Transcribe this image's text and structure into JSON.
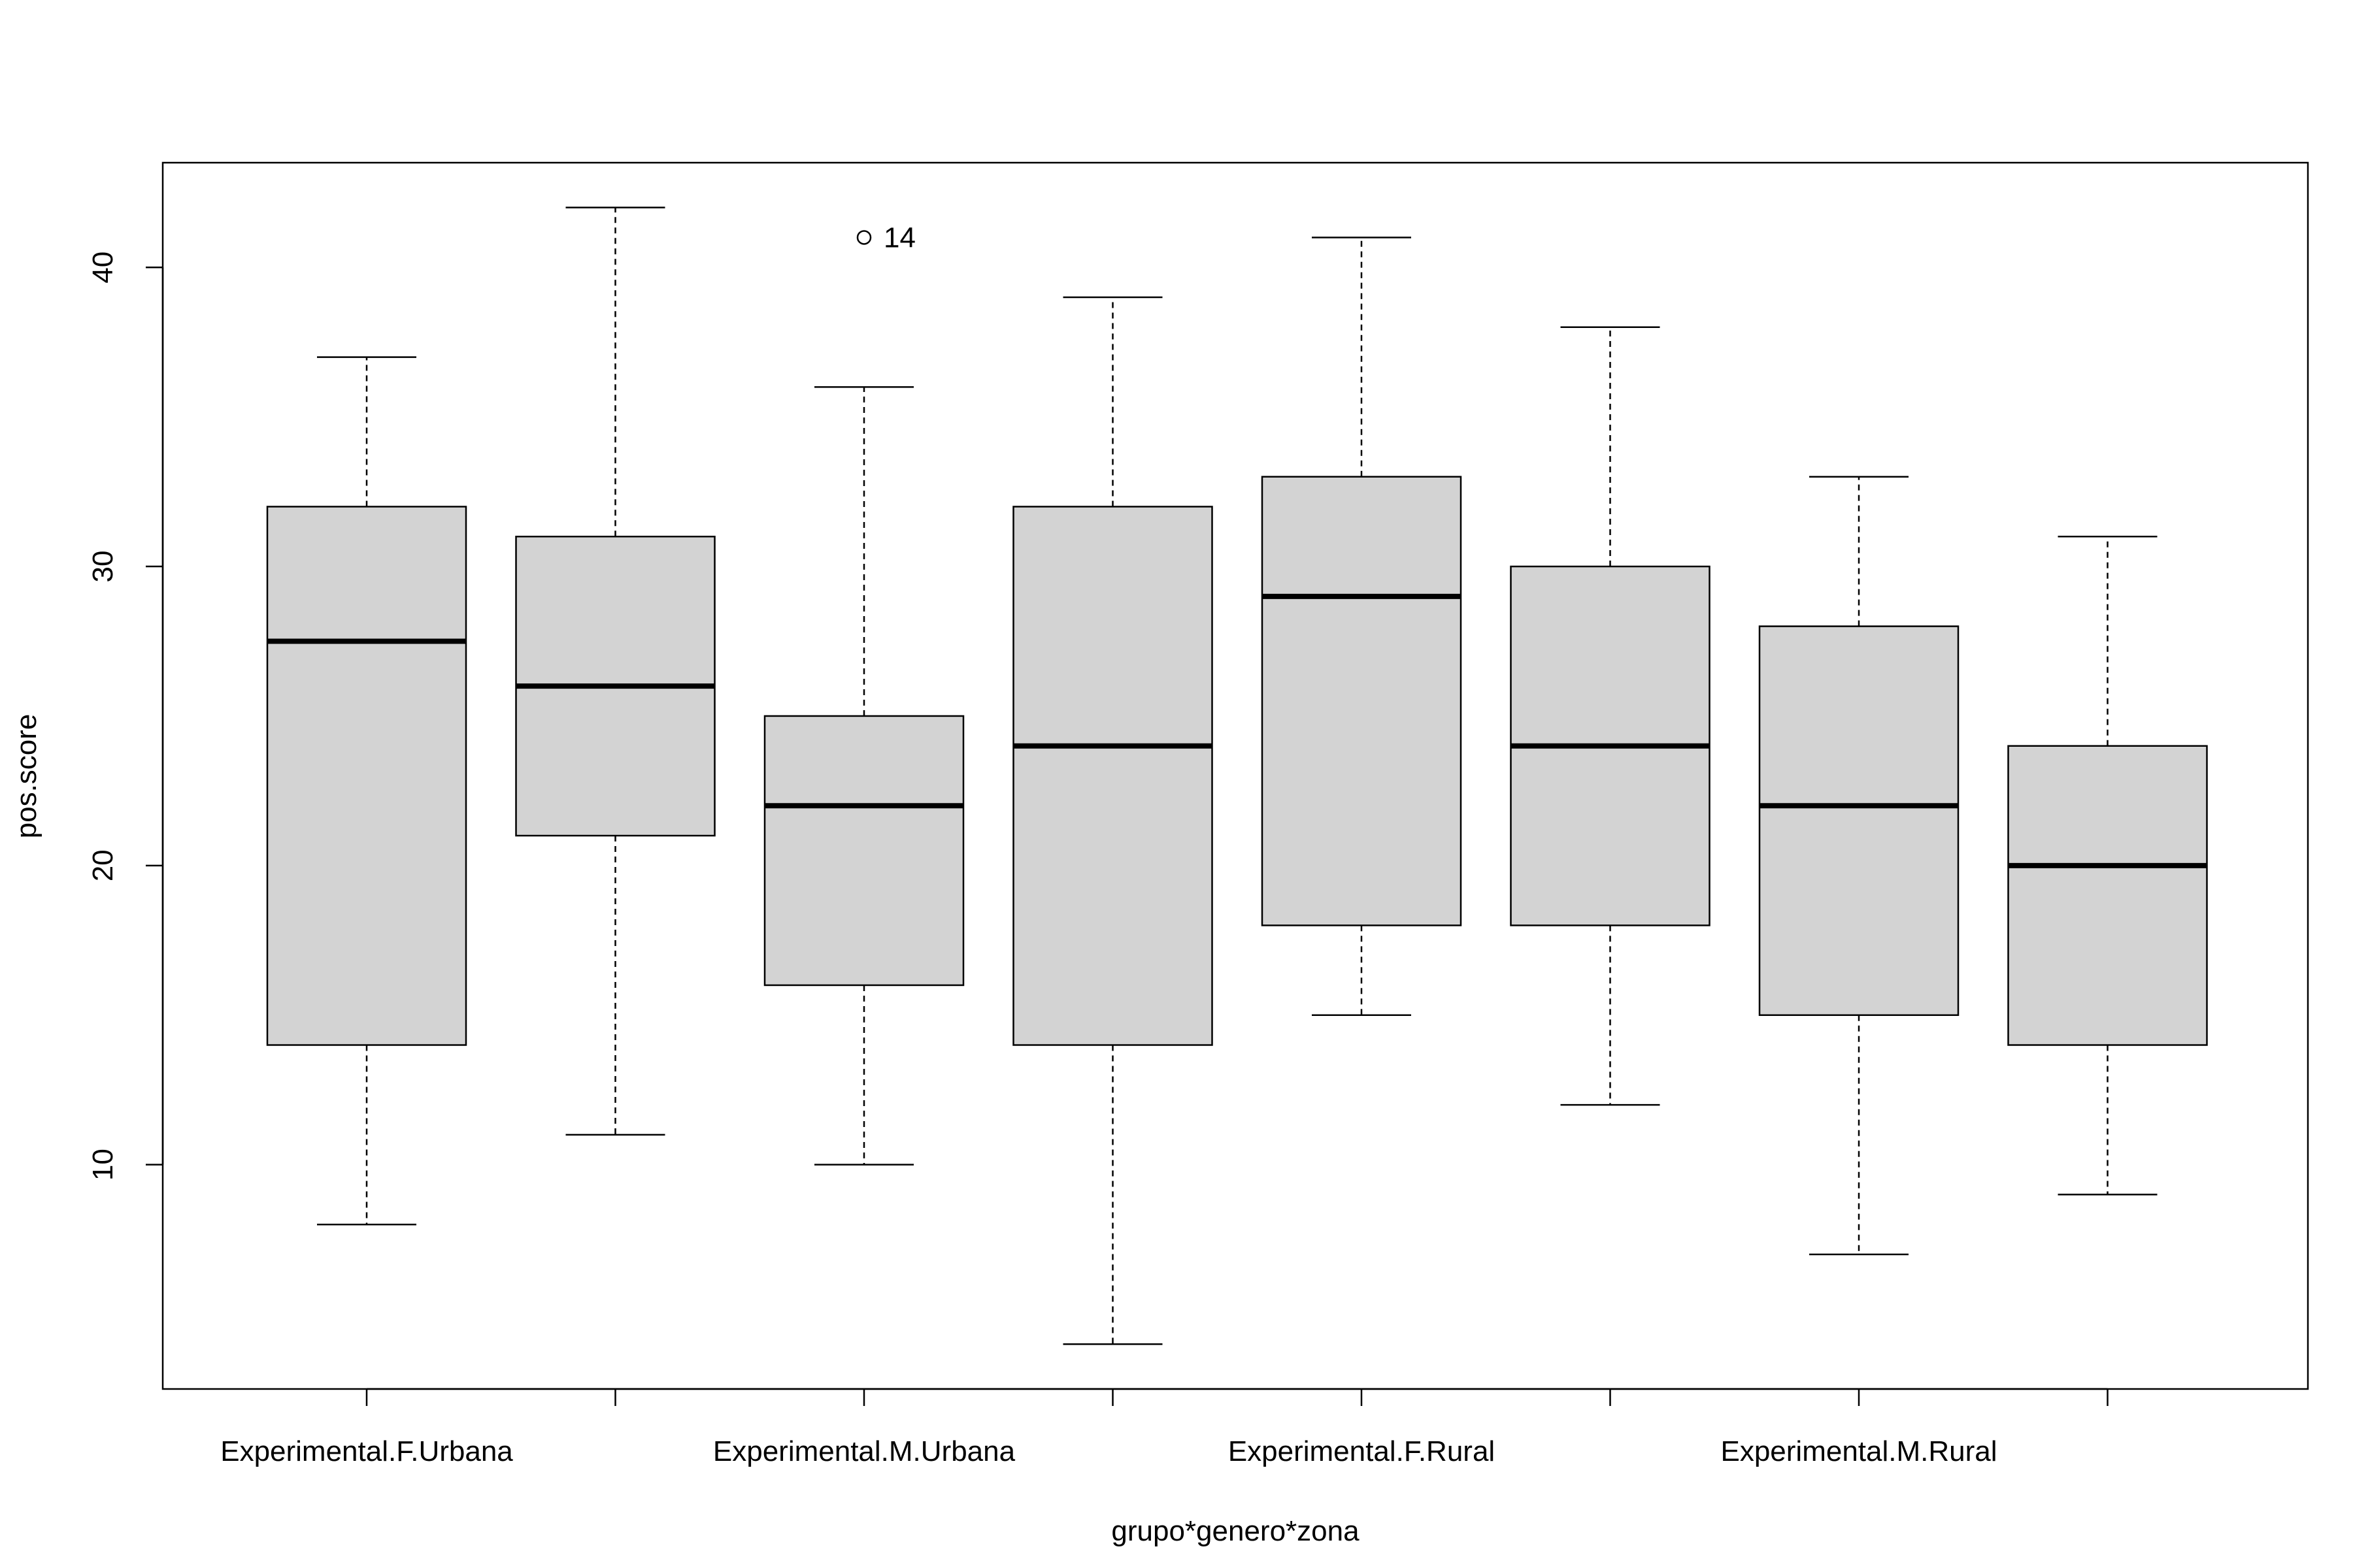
{
  "chart_data": {
    "type": "boxplot",
    "title": "",
    "xlabel": "grupo*genero*zona",
    "ylabel": "pos.score",
    "ylim": [
      2.5,
      43.5
    ],
    "yticks": [
      10,
      20,
      30,
      40
    ],
    "tick_labels": [
      "10",
      "20",
      "30",
      "40"
    ],
    "categories": [
      "Experimental.F.Urbana",
      "",
      "Experimental.M.Urbana",
      "",
      "Experimental.F.Rural",
      "",
      "Experimental.M.Rural",
      ""
    ],
    "boxes": [
      {
        "whisker_low": 8,
        "q1": 14,
        "median": 27.5,
        "q3": 32,
        "whisker_high": 37
      },
      {
        "whisker_low": 11,
        "q1": 21,
        "median": 26,
        "q3": 31,
        "whisker_high": 42
      },
      {
        "whisker_low": 10,
        "q1": 16,
        "median": 22,
        "q3": 25,
        "whisker_high": 36
      },
      {
        "whisker_low": 4,
        "q1": 14,
        "median": 24,
        "q3": 32,
        "whisker_high": 39
      },
      {
        "whisker_low": 15,
        "q1": 18,
        "median": 29,
        "q3": 33,
        "whisker_high": 41
      },
      {
        "whisker_low": 12,
        "q1": 18,
        "median": 24,
        "q3": 30,
        "whisker_high": 38
      },
      {
        "whisker_low": 7,
        "q1": 15,
        "median": 22,
        "q3": 28,
        "whisker_high": 33
      },
      {
        "whisker_low": 9,
        "q1": 14,
        "median": 20,
        "q3": 24,
        "whisker_high": 31
      }
    ],
    "outliers": [
      {
        "box": 2,
        "value": 41,
        "label": "14"
      }
    ],
    "colors": {
      "box_fill": "#d3d3d3",
      "stroke": "#000000",
      "background": "#ffffff"
    },
    "grid": false,
    "legend": "none"
  }
}
